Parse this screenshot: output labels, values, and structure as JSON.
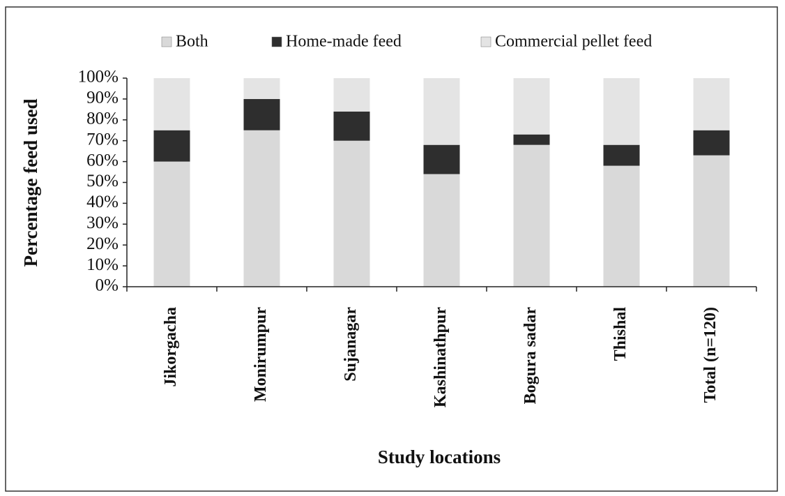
{
  "chart_data": {
    "type": "stacked_bar",
    "x_label": "Study locations",
    "y_label": "Percentage feed used",
    "categories": [
      "Jikorgacha",
      "Monirumpur",
      "Sujanagar",
      "Kashinathpur",
      "Bogura sadar",
      "Thishal",
      "Total (n=120)"
    ],
    "series": [
      {
        "name": "Both",
        "color": "#d9d9d9",
        "values": [
          60,
          75,
          70,
          54,
          68,
          58,
          63
        ]
      },
      {
        "name": "Home-made feed",
        "color": "#2e2e2e",
        "values": [
          15,
          15,
          14,
          14,
          5,
          10,
          12
        ]
      },
      {
        "name": "Commercial pellet feed",
        "color": "#e4e4e4",
        "values": [
          25,
          10,
          16,
          32,
          27,
          32,
          25
        ]
      }
    ],
    "ylim": [
      0,
      100
    ],
    "yticks": [
      {
        "value": 0,
        "label": "0%"
      },
      {
        "value": 10,
        "label": "10%"
      },
      {
        "value": 20,
        "label": "20%"
      },
      {
        "value": 30,
        "label": "30%"
      },
      {
        "value": 40,
        "label": "40%"
      },
      {
        "value": 50,
        "label": "50%"
      },
      {
        "value": 60,
        "label": "60%"
      },
      {
        "value": 70,
        "label": "70%"
      },
      {
        "value": 80,
        "label": "80%"
      },
      {
        "value": 90,
        "label": "90%"
      },
      {
        "value": 100,
        "label": "100%"
      }
    ],
    "grid": false,
    "legend": "top"
  }
}
